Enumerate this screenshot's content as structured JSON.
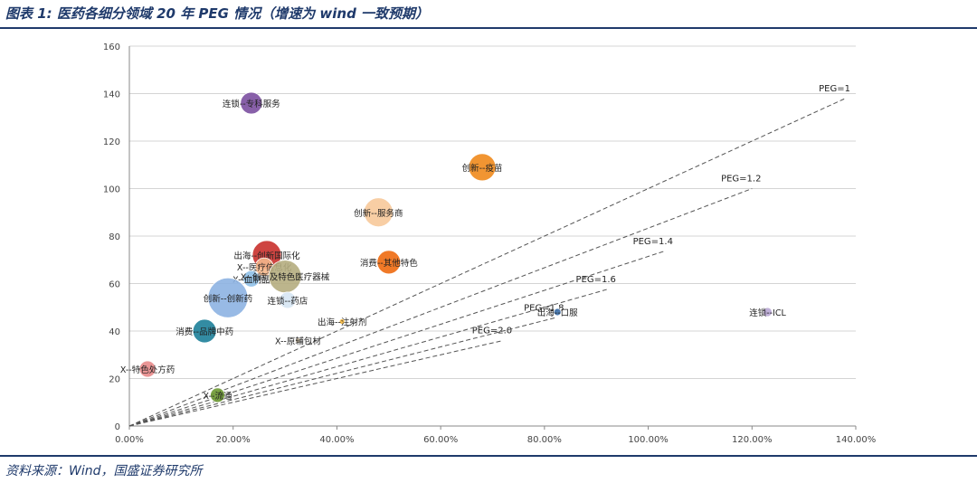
{
  "title": "图表 1:  医药各细分领域 20 年 PEG 情况（增速为 wind 一致预期）",
  "source": "资料来源：Wind，国盛证券研究所",
  "chart_data": {
    "type": "scatter",
    "xlim": [
      0,
      1.4
    ],
    "ylim": [
      0,
      160
    ],
    "x_ticks": [
      "0.00%",
      "20.00%",
      "40.00%",
      "60.00%",
      "80.00%",
      "100.00%",
      "120.00%",
      "140.00%"
    ],
    "y_ticks": [
      "0",
      "20",
      "40",
      "60",
      "80",
      "100",
      "120",
      "140",
      "160"
    ],
    "grid": true,
    "peg_lines": [
      {
        "label": "PEG=2.0",
        "peg": 2.0
      },
      {
        "label": "PEG=1.8",
        "peg": 1.8
      },
      {
        "label": "PEG=1.6",
        "peg": 1.6
      },
      {
        "label": "PEG=1.4",
        "peg": 1.4
      },
      {
        "label": "PEG=1.2",
        "peg": 1.2
      },
      {
        "label": "PEG=1",
        "peg": 1.0
      }
    ],
    "points": [
      {
        "label": "连锁--专科服务",
        "x": 0.235,
        "y": 136,
        "size": 12,
        "color": "#7b4fa0"
      },
      {
        "label": "创新--疫苗",
        "x": 0.68,
        "y": 109,
        "size": 15,
        "color": "#f08a1c"
      },
      {
        "label": "创新--服务商",
        "x": 0.48,
        "y": 90,
        "size": 16,
        "color": "#f7c99a"
      },
      {
        "label": "出海--创新国际化",
        "x": 0.265,
        "y": 72,
        "size": 16,
        "color": "#c9302c"
      },
      {
        "label": "消费--其他特色",
        "x": 0.5,
        "y": 69,
        "size": 13,
        "color": "#ee6a10"
      },
      {
        "label": "X--医疗信息化",
        "x": 0.26,
        "y": 67,
        "size": 10,
        "color": "#f4b78c"
      },
      {
        "label": "X--血制品",
        "x": 0.235,
        "y": 62,
        "size": 9,
        "color": "#8fc0e8"
      },
      {
        "label": "X--创新及特色医疗器械",
        "x": 0.3,
        "y": 63,
        "size": 18,
        "color": "#b5ad80"
      },
      {
        "label": "创新--创新药",
        "x": 0.19,
        "y": 54,
        "size": 22,
        "color": "#8db3e2"
      },
      {
        "label": "连锁--药店",
        "x": 0.305,
        "y": 53,
        "size": 9,
        "color": "#d6e6f3"
      },
      {
        "label": "消费--品牌中药",
        "x": 0.145,
        "y": 40,
        "size": 13,
        "color": "#1d8099"
      },
      {
        "label": "出海--注射剂",
        "x": 0.41,
        "y": 44,
        "size": 3,
        "color": "#f2b43b"
      },
      {
        "label": "X--原辅包材",
        "x": 0.325,
        "y": 36,
        "size": 3,
        "color": "#c9b9a0"
      },
      {
        "label": "出海--口服",
        "x": 0.825,
        "y": 48,
        "size": 4,
        "color": "#3b6ea8"
      },
      {
        "label": "连锁--ICL",
        "x": 1.23,
        "y": 48,
        "size": 5,
        "color": "#b9a7d5"
      },
      {
        "label": "X--特色处方药",
        "x": 0.035,
        "y": 24,
        "size": 9,
        "color": "#e8898a"
      },
      {
        "label": "X--流通",
        "x": 0.17,
        "y": 13,
        "size": 8,
        "color": "#6d9932"
      }
    ]
  }
}
